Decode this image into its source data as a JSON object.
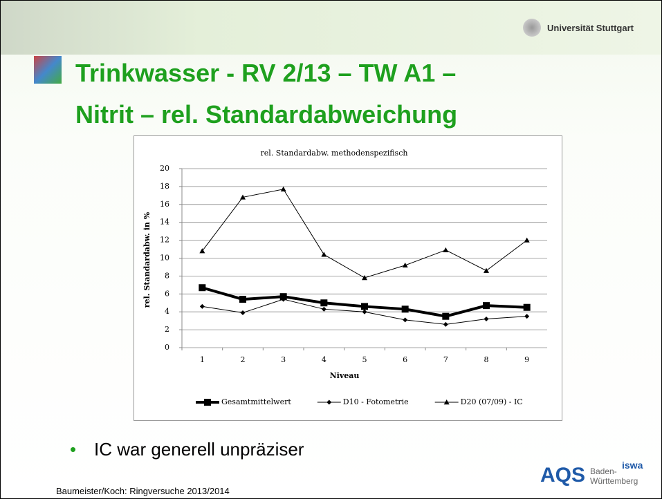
{
  "header": {
    "university": "Universität Stuttgart"
  },
  "slide_title": [
    "Trinkwasser - RV 2/13 – TW A1 –",
    "Nitrit – rel. Standardabweichung"
  ],
  "chart_data": {
    "type": "line",
    "title": "rel. Standardabw. methodenspezifisch",
    "x_label": "Niveau",
    "y_label": "rel. Standardabw. in %",
    "categories": [
      "1",
      "2",
      "3",
      "4",
      "5",
      "6",
      "7",
      "8",
      "9"
    ],
    "series": [
      {
        "name": "Gesamtmittelwert",
        "color": "#000000",
        "marker": "square",
        "width": 4,
        "values": [
          6.7,
          5.4,
          5.7,
          5.0,
          4.6,
          4.3,
          3.5,
          4.7,
          4.5
        ]
      },
      {
        "name": "D10 - Fotometrie",
        "color": "#000000",
        "marker": "diamond",
        "width": 1,
        "values": [
          4.6,
          3.9,
          5.4,
          4.3,
          4.0,
          3.1,
          2.6,
          3.2,
          3.5
        ]
      },
      {
        "name": "D20 (07/09) - IC",
        "color": "#000000",
        "marker": "triangle",
        "width": 1,
        "values": [
          10.8,
          16.8,
          17.7,
          10.4,
          7.8,
          9.2,
          10.9,
          8.6,
          12.0
        ]
      }
    ],
    "ylim": [
      0,
      20
    ],
    "yticks": [
      0,
      2,
      4,
      6,
      8,
      10,
      12,
      14,
      16,
      18,
      20
    ],
    "grid": true,
    "legend": "bottom"
  },
  "bullets": [
    "IC war generell unpräziser"
  ],
  "logo": {
    "main": "AQS",
    "line1": "Baden-",
    "line2": "Württemberg",
    "badge": "iswa"
  },
  "footer": "Baumeister/Koch: Ringversuche 2013/2014"
}
